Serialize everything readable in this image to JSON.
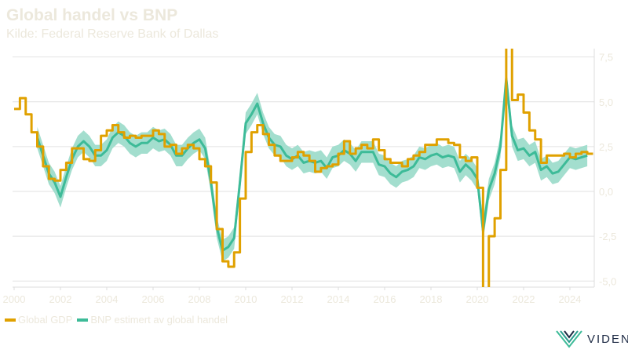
{
  "chart_data": {
    "type": "line",
    "title": "Global handel vs BNP",
    "subtitle": "Kilde: Federal Reserve Bank of Dallas",
    "xlim": [
      2000,
      2025
    ],
    "ylim": [
      -5.3,
      7.9
    ],
    "x_ticks": [
      "2000",
      "2002",
      "2004",
      "2006",
      "2008",
      "2010",
      "2012",
      "2014",
      "2016",
      "2018",
      "2020",
      "2022",
      "2024"
    ],
    "y_ticks": [
      "7,5",
      "5,0",
      "2,5",
      "0,0",
      "-2,5",
      "-5,0"
    ],
    "y_tick_values": [
      7.5,
      5,
      2.5,
      0,
      -2.5,
      -5
    ],
    "y_axis_side": "right",
    "grid": true,
    "legend_position": "bottom-left",
    "series": [
      {
        "name": "Global GDP",
        "color": "#e0a100",
        "style": "step",
        "start": 2000,
        "step": 0.25,
        "values": [
          4.6,
          5.2,
          4.3,
          3.3,
          2.5,
          1.4,
          0.7,
          0.6,
          1.2,
          1.6,
          2.4,
          2.4,
          1.8,
          1.7,
          2.3,
          3.1,
          3.4,
          3.7,
          3.3,
          3.0,
          3.1,
          3.0,
          3.1,
          3.1,
          3.4,
          3.2,
          2.5,
          2.6,
          2.1,
          2.4,
          2.6,
          2.4,
          1.8,
          1.4,
          0.5,
          -2.1,
          -3.9,
          -4.2,
          -3.4,
          -0.4,
          2.2,
          3.3,
          3.7,
          3.2,
          2.6,
          2.0,
          1.7,
          1.7,
          1.9,
          2.2,
          2.0,
          1.7,
          1.1,
          1.3,
          1.4,
          1.5,
          2.1,
          2.8,
          2.1,
          2.4,
          2.6,
          2.4,
          2.9,
          2.3,
          1.8,
          1.6,
          1.6,
          1.4,
          1.8,
          2.0,
          2.2,
          2.6,
          2.6,
          2.9,
          2.9,
          2.7,
          2.6,
          1.9,
          1.7,
          1.9,
          0.2,
          -8.5,
          -2.5,
          -1.5,
          1.2,
          12.0,
          5.1,
          5.4,
          4.4,
          3.4,
          2.9,
          1.6,
          2.0,
          2.0,
          2.0,
          2.1,
          1.9,
          2.1,
          2.2,
          2.1
        ]
      },
      {
        "name": "BNP estimert av global handel",
        "color": "#3dbb98",
        "band_color": "#9edccb",
        "band_halfwidth": 0.6,
        "style": "line",
        "start": 2001,
        "step": 0.25,
        "values": [
          3.0,
          2.0,
          1.0,
          0.5,
          -0.3,
          0.8,
          1.8,
          2.5,
          2.8,
          2.5,
          2.0,
          2.0,
          2.3,
          3.0,
          3.3,
          3.1,
          2.7,
          2.5,
          2.7,
          2.7,
          3.0,
          2.8,
          2.9,
          2.6,
          2.0,
          2.0,
          2.4,
          2.7,
          2.9,
          2.4,
          0.5,
          -2.0,
          -3.3,
          -3.1,
          -2.6,
          0.5,
          3.8,
          4.3,
          4.9,
          3.8,
          3.0,
          2.6,
          2.5,
          2.0,
          1.8,
          2.0,
          1.6,
          1.7,
          1.6,
          1.7,
          1.3,
          1.9,
          2.0,
          2.3,
          2.1,
          1.7,
          2.2,
          2.2,
          2.2,
          1.5,
          1.4,
          1.0,
          0.8,
          1.1,
          1.2,
          1.4,
          1.9,
          1.8,
          2.0,
          2.1,
          1.9,
          2.0,
          1.9,
          1.1,
          1.5,
          1.2,
          0.7,
          -2.2,
          0.1,
          1.0,
          2.5,
          6.3,
          3.1,
          2.3,
          2.4,
          2.0,
          2.2,
          1.2,
          1.4,
          1.0,
          1.1,
          1.5,
          1.9,
          1.8,
          1.9,
          2.0
        ]
      }
    ]
  },
  "logo": {
    "text": "VIDEN"
  }
}
